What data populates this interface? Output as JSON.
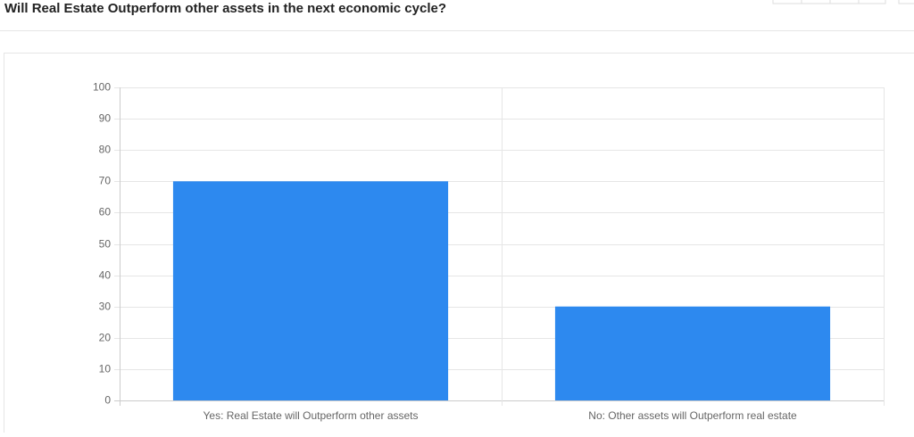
{
  "chart_data": {
    "type": "bar",
    "title": "Will Real Estate Outperform other assets in the next economic cycle?",
    "categories": [
      "Yes: Real Estate will Outperform other assets",
      "No: Other assets will Outperform real estate"
    ],
    "values": [
      70,
      30
    ],
    "color": "#2d89ef",
    "ylim": [
      0,
      100
    ],
    "yticks": [
      0,
      10,
      20,
      30,
      40,
      50,
      60,
      70,
      80,
      90,
      100
    ],
    "grid": true
  }
}
